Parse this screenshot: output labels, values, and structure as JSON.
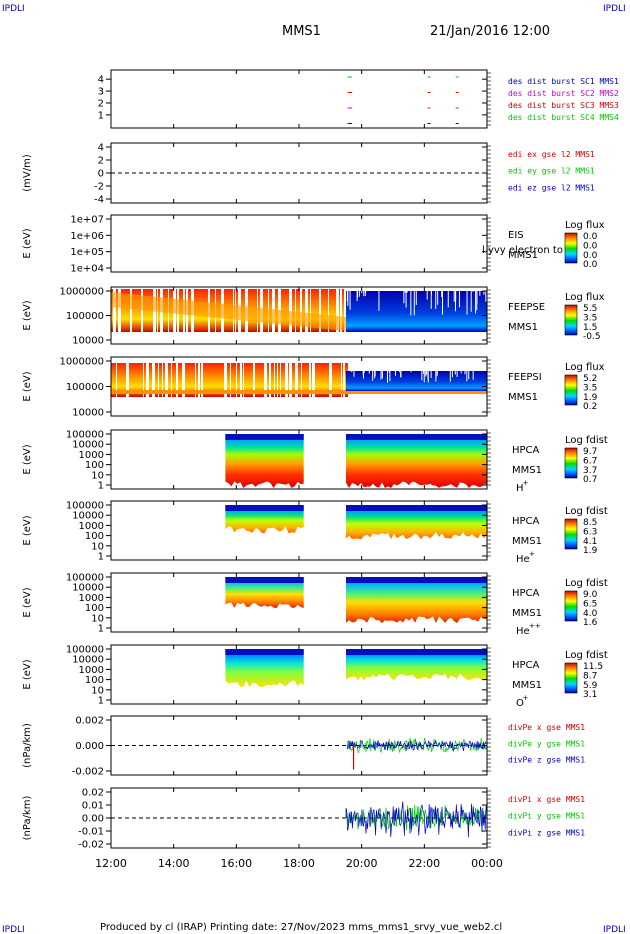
{
  "corners": {
    "left": "IPDLI",
    "right": "IPDLI"
  },
  "title": "MMS1",
  "datetime": "21/Jan/2016 12:00",
  "footer": "Produced by cl (IRAP)    Printing date: 27/Nov/2023    mms_mms1_srvy_vue_web2.cl",
  "colors": {
    "red": "#d40000",
    "green": "#00c800",
    "blue": "#0000c8",
    "magenta": "#c800c8"
  },
  "chart_data": [
    {
      "type": "scatter",
      "panel": "burst",
      "ylabel": "",
      "yticks": [
        "4",
        "3",
        "2",
        "1"
      ],
      "xticks": [
        "12:00",
        "14:00",
        "16:00",
        "18:00",
        "20:00",
        "22:00",
        "00:00"
      ],
      "legend": [
        {
          "text": "des dist burst SC1 MMS1",
          "color": "blue"
        },
        {
          "text": "des dist burst SC2 MMS2",
          "color": "magenta"
        },
        {
          "text": "des dist burst SC3 MMS3",
          "color": "red"
        },
        {
          "text": "des dist burst SC4 MMS4",
          "color": "green"
        }
      ],
      "markers_hours": [
        19.55,
        19.6,
        22.1,
        23.0
      ]
    },
    {
      "type": "line",
      "panel": "edi",
      "ylabel": "(mV/m)",
      "yticks": [
        "4",
        "2",
        "0",
        "-2",
        "-4"
      ],
      "ylim": [
        -4,
        4
      ],
      "legend": [
        {
          "text": "edi ex gse l2 MMS1",
          "color": "red"
        },
        {
          "text": "edi ey gse l2 MMS1",
          "color": "green"
        },
        {
          "text": "edi ez gse l2 MMS1",
          "color": "blue"
        }
      ]
    },
    {
      "type": "heatmap",
      "panel": "eis",
      "ylabel": "E (eV)",
      "yticks": [
        "1e+07",
        "1e+06",
        "1e+05",
        "1e+04"
      ],
      "labels": [
        "EIS",
        "MMS1"
      ],
      "overlay_text": "l yvy electron to",
      "colorbar_title": "Log flux",
      "colorbar_ticks": [
        "0.0",
        "0.0",
        "0.0",
        "0.0"
      ]
    },
    {
      "type": "heatmap",
      "panel": "feepse",
      "ylabel": "E (eV)",
      "yticks": [
        "1000000",
        "100000",
        "10000"
      ],
      "labels": [
        "FEEPSE",
        "MMS1"
      ],
      "colorbar_title": "Log flux",
      "colorbar_ticks": [
        "5.5",
        "3.5",
        "1.5",
        "-0.5"
      ],
      "data_coverage_hours": [
        12.0,
        24.0
      ],
      "regime_change_hour": 19.5
    },
    {
      "type": "heatmap",
      "panel": "feepsi",
      "ylabel": "E (eV)",
      "yticks": [
        "1000000",
        "100000",
        "10000"
      ],
      "labels": [
        "FEEPSI",
        "MMS1"
      ],
      "colorbar_title": "Log flux",
      "colorbar_ticks": [
        "5.2",
        "3.5",
        "1.9",
        "0.2"
      ],
      "data_coverage_hours": [
        12.0,
        24.0
      ],
      "regime_change_hour": 19.5
    },
    {
      "type": "heatmap",
      "panel": "hpca_h",
      "ylabel": "E (eV)",
      "yticks": [
        "100000",
        "10000",
        "1000",
        "100",
        "10",
        "1"
      ],
      "labels": [
        "HPCA",
        "MMS1"
      ],
      "species": "H",
      "charge": "+",
      "colorbar_title": "Log fdist",
      "colorbar_ticks": [
        "9.7",
        "6.7",
        "3.7",
        "0.7"
      ],
      "data_intervals_hours": [
        [
          15.65,
          18.15
        ],
        [
          19.5,
          24.0
        ]
      ]
    },
    {
      "type": "heatmap",
      "panel": "hpca_he1",
      "ylabel": "E (eV)",
      "yticks": [
        "100000",
        "10000",
        "1000",
        "100",
        "10",
        "1"
      ],
      "labels": [
        "HPCA",
        "MMS1"
      ],
      "species": "He",
      "charge": "+",
      "colorbar_title": "Log fdist",
      "colorbar_ticks": [
        "8.5",
        "6.3",
        "4.1",
        "1.9"
      ],
      "data_intervals_hours": [
        [
          15.65,
          18.15
        ],
        [
          19.5,
          24.0
        ]
      ]
    },
    {
      "type": "heatmap",
      "panel": "hpca_he2",
      "ylabel": "E (eV)",
      "yticks": [
        "100000",
        "10000",
        "1000",
        "100",
        "10",
        "1"
      ],
      "labels": [
        "HPCA",
        "MMS1"
      ],
      "species": "He",
      "charge": "++",
      "colorbar_title": "Log fdist",
      "colorbar_ticks": [
        "9.0",
        "6.5",
        "4.0",
        "1.6"
      ],
      "data_intervals_hours": [
        [
          15.65,
          18.15
        ],
        [
          19.5,
          24.0
        ]
      ]
    },
    {
      "type": "heatmap",
      "panel": "hpca_o",
      "ylabel": "E (eV)",
      "yticks": [
        "100000",
        "10000",
        "1000",
        "100",
        "10",
        "1"
      ],
      "labels": [
        "HPCA",
        "MMS1"
      ],
      "species": "O",
      "charge": "+",
      "colorbar_title": "Log fdist",
      "colorbar_ticks": [
        "11.5",
        "8.7",
        "5.9",
        "3.1"
      ],
      "data_intervals_hours": [
        [
          15.65,
          18.15
        ],
        [
          19.5,
          24.0
        ]
      ]
    },
    {
      "type": "line",
      "panel": "divpe",
      "ylabel": "(nPa/km)",
      "yticks": [
        "0.002",
        "0.000",
        "-0.002"
      ],
      "ylim": [
        -0.003,
        0.003
      ],
      "legend": [
        {
          "text": "divPe x gse MMS1",
          "color": "red"
        },
        {
          "text": "divPe y gse MMS1",
          "color": "green"
        },
        {
          "text": "divPe z gse MMS1",
          "color": "blue"
        }
      ],
      "data_start_hour": 19.55
    },
    {
      "type": "line",
      "panel": "divpi",
      "ylabel": "(nPa/km)",
      "yticks": [
        "0.02",
        "0.01",
        "0.00",
        "-0.01",
        "-0.02"
      ],
      "ylim": [
        -0.023,
        0.023
      ],
      "legend": [
        {
          "text": "divPi x gse MMS1",
          "color": "red"
        },
        {
          "text": "divPi y gse MMS1",
          "color": "green"
        },
        {
          "text": "divPi z gse MMS1",
          "color": "blue"
        }
      ],
      "data_start_hour": 19.5
    }
  ]
}
